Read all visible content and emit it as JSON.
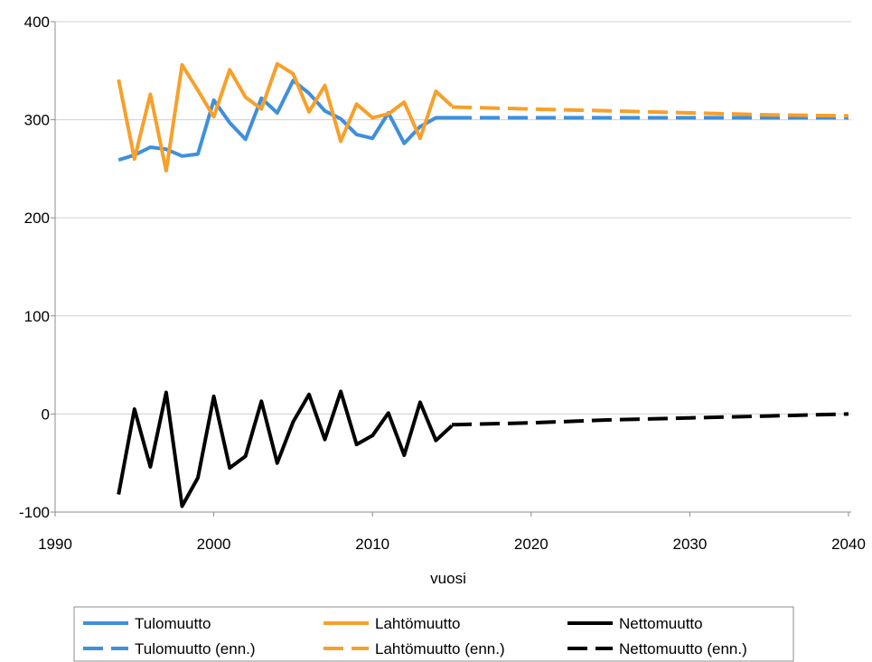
{
  "chart_data": {
    "type": "line",
    "xlabel": "vuosi",
    "ylabel": "",
    "xlim": [
      1990,
      2040
    ],
    "ylim": [
      -100,
      400
    ],
    "xticks": [
      1990,
      2000,
      2010,
      2020,
      2030,
      2040
    ],
    "yticks": [
      -100,
      0,
      100,
      200,
      300,
      400
    ],
    "grid": "horizontal",
    "legend_position": "bottom",
    "series": [
      {
        "name": "Tulomuutto",
        "color": "#3f8fdc",
        "style": "solid",
        "x": [
          1994,
          1995,
          1996,
          1997,
          1998,
          1999,
          2000,
          2001,
          2002,
          2003,
          2004,
          2005,
          2006,
          2007,
          2008,
          2009,
          2010,
          2011,
          2012,
          2013,
          2014,
          2015
        ],
        "y": [
          259,
          264,
          272,
          270,
          263,
          265,
          320,
          297,
          280,
          322,
          307,
          340,
          327,
          309,
          301,
          285,
          281,
          307,
          276,
          293,
          302,
          302
        ]
      },
      {
        "name": "Lahtömuutto",
        "color": "#f7a02a",
        "style": "solid",
        "x": [
          1994,
          1995,
          1996,
          1997,
          1998,
          1999,
          2000,
          2001,
          2002,
          2003,
          2004,
          2005,
          2006,
          2007,
          2008,
          2009,
          2010,
          2011,
          2012,
          2013,
          2014,
          2015
        ],
        "y": [
          341,
          260,
          326,
          248,
          356,
          330,
          303,
          351,
          323,
          311,
          357,
          347,
          308,
          335,
          278,
          316,
          302,
          306,
          318,
          281,
          329,
          314
        ]
      },
      {
        "name": "Nettomuutto",
        "color": "#000000",
        "style": "solid",
        "x": [
          1994,
          1995,
          1996,
          1997,
          1998,
          1999,
          2000,
          2001,
          2002,
          2003,
          2004,
          2005,
          2006,
          2007,
          2008,
          2009,
          2010,
          2011,
          2012,
          2013,
          2014,
          2015
        ],
        "y": [
          -82,
          5,
          -54,
          22,
          -94,
          -65,
          18,
          -55,
          -43,
          13,
          -50,
          -8,
          20,
          -26,
          23,
          -31,
          -22,
          1,
          -42,
          12,
          -27,
          -12
        ]
      },
      {
        "name": "Tulomuutto (enn.)",
        "color": "#3f8fdc",
        "style": "dashed",
        "x": [
          2015,
          2020,
          2025,
          2030,
          2035,
          2040
        ],
        "y": [
          302,
          302,
          302,
          302,
          302,
          302
        ]
      },
      {
        "name": "Lahtömuutto (enn.)",
        "color": "#f7a02a",
        "style": "dashed",
        "x": [
          2015,
          2020,
          2025,
          2030,
          2035,
          2040
        ],
        "y": [
          313,
          311,
          309,
          307,
          305,
          304
        ]
      },
      {
        "name": "Nettomuutto (enn.)",
        "color": "#000000",
        "style": "dashed",
        "x": [
          2015,
          2020,
          2025,
          2030,
          2035,
          2040
        ],
        "y": [
          -11,
          -9,
          -6,
          -4,
          -2,
          0
        ]
      }
    ]
  }
}
